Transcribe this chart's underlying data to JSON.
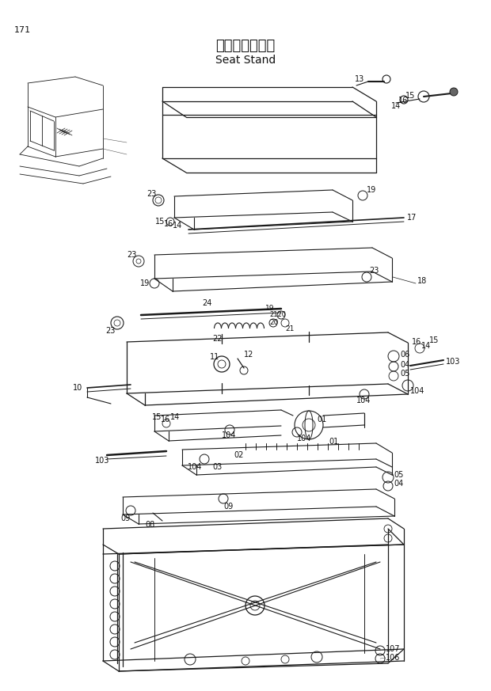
{
  "page_number": "171",
  "title_japanese": "シートスタンド",
  "title_english": "Seat Stand",
  "background_color": "#ffffff",
  "line_color": "#1a1a1a",
  "text_color": "#111111",
  "fig_width": 6.2,
  "fig_height": 8.73,
  "dpi": 100
}
